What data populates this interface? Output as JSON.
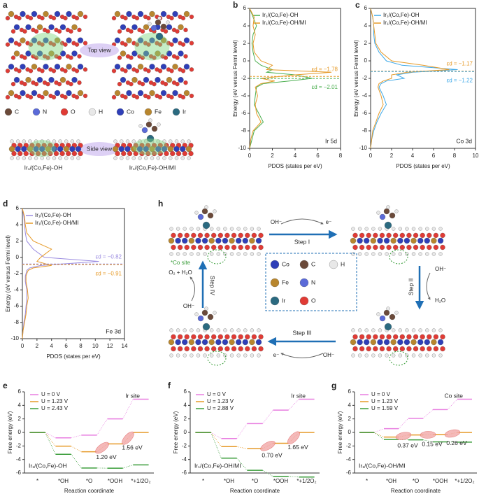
{
  "panel_labels": [
    "a",
    "b",
    "c",
    "d",
    "e",
    "f",
    "g",
    "h"
  ],
  "structures": {
    "top_view": "Top view",
    "side_view": "Side view",
    "models": [
      "Ir₁/(Co,Fe)-OH",
      "Ir₁/(Co,Fe)-OH/MI"
    ],
    "legend": [
      "C",
      "N",
      "O",
      "H",
      "Co",
      "Fe",
      "Ir"
    ]
  },
  "cycle": {
    "steps": [
      {
        "name": "Step I",
        "input": "OH⁻",
        "output": "e⁻"
      },
      {
        "name": "Step II",
        "input": "OH⁻",
        "output": "H₂O"
      },
      {
        "name": "Step III",
        "input": "OH⁻",
        "output": "e⁻"
      },
      {
        "name": "Step IV",
        "input": "OH⁻",
        "output": "O₂ + H₂O"
      }
    ],
    "site_label": "*Co site",
    "legend": [
      "Co",
      "C",
      "H",
      "Fe",
      "N",
      "Ir",
      "O"
    ]
  },
  "chart_data": [
    {
      "type": "line",
      "xlabel": "PDOS (states per eV)",
      "ylabel": "Energy (eV versus Fermi level)",
      "orbital_label": "Ir 5d",
      "xlim": [
        0,
        8
      ],
      "xticks": [
        0,
        2,
        4,
        6,
        8
      ],
      "ylim": [
        -10,
        6
      ],
      "yticks": [
        -10,
        -8,
        -6,
        -4,
        -2,
        0,
        2,
        4,
        6
      ],
      "series": [
        {
          "name": "Ir₁/(Co,Fe)-OH",
          "color": "#4caf50",
          "x": [
            0,
            0.3,
            0.6,
            0.3,
            0.2,
            0.3,
            0.5,
            1.0,
            2.0,
            1.5,
            4.0,
            5.5,
            3.5,
            1.2,
            0.6,
            0.5,
            0.4,
            0.8,
            1.2,
            0.4,
            0.2,
            0
          ],
          "values": [
            6,
            5,
            4,
            3,
            2,
            1,
            0,
            -0.5,
            -1,
            -1.3,
            -1.6,
            -2,
            -2.3,
            -2.6,
            -3,
            -4,
            -5,
            -6,
            -7,
            -8,
            -9,
            -10
          ]
        },
        {
          "name": "Ir₁/(Co,Fe)-OH/MI",
          "color": "#e69a28",
          "x": [
            0,
            0.4,
            0.3,
            0.5,
            0.3,
            0.4,
            1.0,
            2.0,
            1.5,
            7.2,
            4.0,
            1.0,
            2.2,
            1.0,
            0.5,
            0.7,
            0.5,
            0.6,
            1.0,
            0.3,
            0.1,
            0
          ],
          "values": [
            6,
            5,
            4,
            3,
            2,
            1,
            0,
            -0.5,
            -1,
            -1.3,
            -1.6,
            -2,
            -2.3,
            -2.6,
            -3,
            -4,
            -5,
            -6,
            -7,
            -8,
            -9,
            -10
          ]
        }
      ],
      "annotations": [
        {
          "text": "εd = −1.78",
          "value": -1.78,
          "color": "#e69a28"
        },
        {
          "text": "εd = −2.01",
          "value": -2.01,
          "color": "#4caf50"
        }
      ]
    },
    {
      "type": "line",
      "xlabel": "PDOS (states per eV)",
      "ylabel": "Energy (eV versus Fermi level)",
      "orbital_label": "Co 3d",
      "xlim": [
        0,
        10
      ],
      "xticks": [
        0,
        2,
        4,
        6,
        8,
        10
      ],
      "ylim": [
        -10,
        6
      ],
      "yticks": [
        -10,
        -8,
        -6,
        -4,
        -2,
        0,
        2,
        4,
        6
      ],
      "series": [
        {
          "name": "Ir₁/(Co,Fe)-OH",
          "color": "#3fa9e8",
          "x": [
            0,
            0.2,
            0.3,
            0.3,
            0.4,
            0.8,
            1.5,
            3.0,
            8.3,
            4.0,
            2.5,
            3.2,
            1.5,
            1.0,
            0.8,
            1.2,
            1.5,
            1.0,
            0.6,
            0.3,
            0.1,
            0
          ],
          "values": [
            6,
            5,
            4,
            3,
            2,
            1,
            0,
            -0.5,
            -1,
            -1.3,
            -1.6,
            -2,
            -2.3,
            -2.6,
            -3,
            -4,
            -5,
            -6,
            -7,
            -8,
            -9,
            -10
          ]
        },
        {
          "name": "Ir₁/(Co,Fe)-OH/MI",
          "color": "#e69a28",
          "x": [
            0,
            0.2,
            0.3,
            0.4,
            0.5,
            1.0,
            2.0,
            5.0,
            7.5,
            3.5,
            2.0,
            2.0,
            1.2,
            0.8,
            0.7,
            1.0,
            1.2,
            0.8,
            0.5,
            0.2,
            0.1,
            0
          ],
          "values": [
            6,
            5,
            4,
            3,
            2,
            1,
            0,
            -0.5,
            -1,
            -1.3,
            -1.6,
            -2,
            -2.3,
            -2.6,
            -3,
            -4,
            -5,
            -6,
            -7,
            -8,
            -9,
            -10
          ]
        }
      ],
      "annotations": [
        {
          "text": "εd = −1.17",
          "value": -1.17,
          "color": "#e69a28"
        },
        {
          "text": "εd = −1.22",
          "value": -1.22,
          "color": "#3fa9e8"
        }
      ]
    },
    {
      "type": "line",
      "xlabel": "PDOS (states per eV)",
      "ylabel": "Energy (eV versus Fermi level)",
      "orbital_label": "Fe 3d",
      "xlim": [
        0,
        14
      ],
      "xticks": [
        0,
        2,
        4,
        6,
        8,
        10,
        12,
        14
      ],
      "ylim": [
        -10,
        6
      ],
      "yticks": [
        -10,
        -8,
        -6,
        -4,
        -2,
        0,
        2,
        4,
        6
      ],
      "series": [
        {
          "name": "Ir₁/(Co,Fe)-OH",
          "color": "#9b8ce0",
          "x": [
            0,
            0.2,
            0.3,
            0.4,
            0.6,
            1.5,
            3.0,
            10.5,
            2.5,
            1.0,
            0.6,
            0.5,
            0.4,
            0.4,
            0.4,
            0.6,
            0.6,
            0.5,
            0.4,
            0.2,
            0.1,
            0
          ],
          "values": [
            6,
            5,
            4,
            3,
            2,
            1,
            0,
            -0.5,
            -1,
            -1.3,
            -1.6,
            -2,
            -2.3,
            -2.6,
            -3,
            -4,
            -5,
            -6,
            -7,
            -8,
            -9,
            -10
          ]
        },
        {
          "name": "Ir₁/(Co,Fe)-OH/MI",
          "color": "#e69a28",
          "x": [
            0,
            0.3,
            0.4,
            0.6,
            1.5,
            4.0,
            2.5,
            2.0,
            4.0,
            1.5,
            0.8,
            0.6,
            0.5,
            0.5,
            0.5,
            0.7,
            0.8,
            0.6,
            0.5,
            0.3,
            0.1,
            0
          ],
          "values": [
            6,
            5,
            4,
            3,
            2,
            1,
            0,
            -0.5,
            -1,
            -1.3,
            -1.6,
            -2,
            -2.3,
            -2.6,
            -3,
            -4,
            -5,
            -6,
            -7,
            -8,
            -9,
            -10
          ]
        }
      ],
      "annotations": [
        {
          "text": "εd = −0.82",
          "value": -0.82,
          "color": "#9b8ce0"
        },
        {
          "text": "εd = −0.91",
          "value": -0.91,
          "color": "#e69a28"
        }
      ]
    },
    {
      "type": "step",
      "xlabel": "Reaction coordinate",
      "ylabel": "Free energy (eV)",
      "site_label": "Ir site",
      "catalyst_label": "Ir₁/(Co,Fe)-OH",
      "categories": [
        "*",
        "*OH",
        "*O",
        "*OOH",
        "*+1/2O₂"
      ],
      "ylim": [
        -6,
        6
      ],
      "yticks": [
        -6,
        -4,
        -2,
        0,
        2,
        4,
        6
      ],
      "series": [
        {
          "name": "U = 0 V",
          "color": "#e87ee0",
          "values": [
            0,
            -0.8,
            -0.4,
            2.0,
            4.92
          ]
        },
        {
          "name": "U = 1.23 V",
          "color": "#e69a28",
          "values": [
            0,
            -2.03,
            -2.86,
            -1.69,
            0
          ]
        },
        {
          "name": "U = 2.43 V",
          "color": "#3a9d3a",
          "values": [
            0,
            -3.23,
            -5.26,
            -5.29,
            -4.8
          ]
        }
      ],
      "barriers": [
        {
          "text": "1.20 eV",
          "from": "*O",
          "to": "*OOH"
        },
        {
          "text": "1.56 eV",
          "from": "*OOH",
          "to": "*+1/2O₂"
        }
      ]
    },
    {
      "type": "step",
      "xlabel": "Reaction coordinate",
      "ylabel": "Free energy (eV)",
      "site_label": "Ir site",
      "catalyst_label": "Ir₁/(Co,Fe)-OH/MI",
      "categories": [
        "*",
        "*OH",
        "*O",
        "*OOH",
        "*+1/2O₂"
      ],
      "ylim": [
        -6,
        6
      ],
      "yticks": [
        -6,
        -4,
        -2,
        0,
        2,
        4,
        6
      ],
      "series": [
        {
          "name": "U = 0 V",
          "color": "#e87ee0",
          "values": [
            0,
            -0.9,
            1.3,
            3.3,
            4.92
          ]
        },
        {
          "name": "U = 1.23 V",
          "color": "#e69a28",
          "values": [
            0,
            -2.1,
            -2.4,
            -1.6,
            0
          ]
        },
        {
          "name": "U = 2.88 V",
          "color": "#3a9d3a",
          "values": [
            0,
            -3.8,
            -5.6,
            -6.5,
            -6.6
          ]
        }
      ],
      "barriers": [
        {
          "text": "0.70 eV",
          "from": "*O",
          "to": "*OOH"
        },
        {
          "text": "1.65 eV",
          "from": "*OOH",
          "to": "*+1/2O₂"
        }
      ]
    },
    {
      "type": "step",
      "xlabel": "Reaction coordinate",
      "ylabel": "Free energy (eV)",
      "site_label": "Co site",
      "catalyst_label": "Ir₁/(Co,Fe)-OH/MI",
      "categories": [
        "*",
        "*OH",
        "*O",
        "*OOH",
        "*+1/2O₂"
      ],
      "ylim": [
        -6,
        6
      ],
      "yticks": [
        -6,
        -4,
        -2,
        0,
        2,
        4,
        6
      ],
      "series": [
        {
          "name": "U = 0 V",
          "color": "#e87ee0",
          "values": [
            0,
            0.55,
            2.08,
            3.37,
            4.92
          ]
        },
        {
          "name": "U = 1.23 V",
          "color": "#e69a28",
          "values": [
            0,
            -0.68,
            -0.38,
            -0.32,
            0
          ]
        },
        {
          "name": "U = 1.59 V",
          "color": "#3a9d3a",
          "values": [
            0,
            -1.04,
            -1.1,
            -1.4,
            -1.44
          ]
        }
      ],
      "barriers": [
        {
          "text": "0.37 eV",
          "from": "*OH",
          "to": "*O"
        },
        {
          "text": "0.15 eV",
          "from": "*O",
          "to": "*OOH"
        },
        {
          "text": "0.26 eV",
          "from": "*OOH",
          "to": "*+1/2O₂"
        }
      ]
    }
  ]
}
